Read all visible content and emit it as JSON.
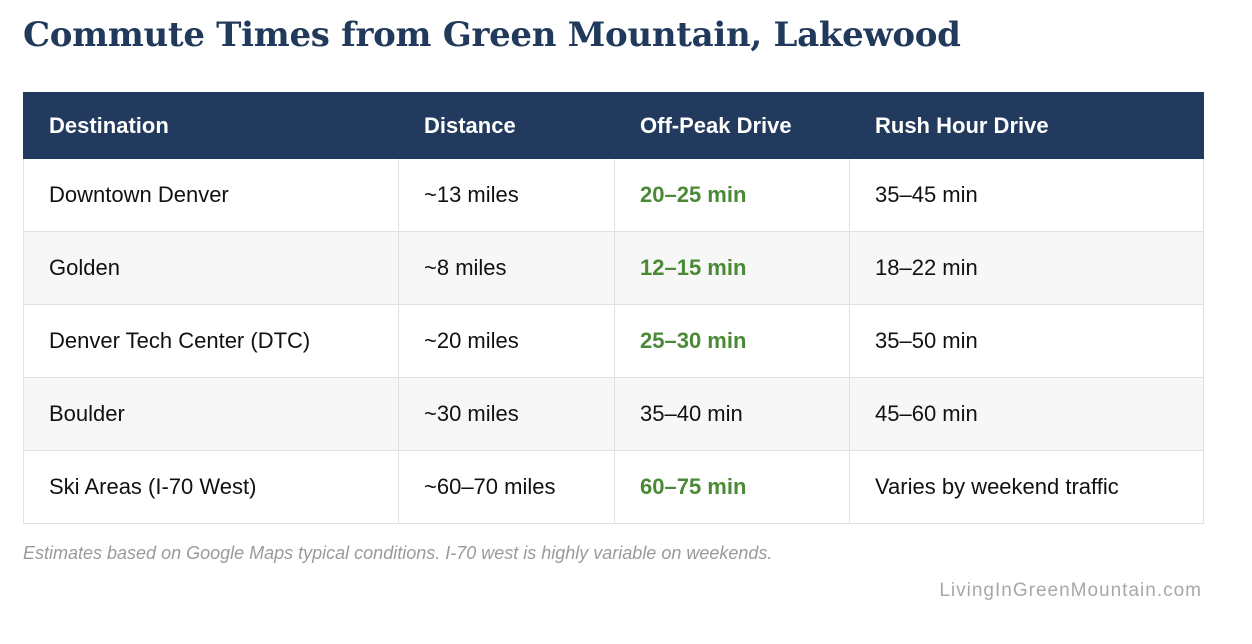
{
  "title": "Commute Times from Green Mountain, Lakewood",
  "table": {
    "headers": [
      "Destination",
      "Distance",
      "Off-Peak Drive",
      "Rush Hour Drive"
    ],
    "rows": [
      {
        "destination": "Downtown Denver",
        "distance": "~13 miles",
        "off_peak": "20–25 min",
        "off_peak_highlight": true,
        "rush_hour": "35–45 min"
      },
      {
        "destination": "Golden",
        "distance": "~8 miles",
        "off_peak": "12–15 min",
        "off_peak_highlight": true,
        "rush_hour": "18–22 min"
      },
      {
        "destination": "Denver Tech Center (DTC)",
        "distance": "~20 miles",
        "off_peak": "25–30 min",
        "off_peak_highlight": true,
        "rush_hour": "35–50 min"
      },
      {
        "destination": "Boulder",
        "distance": "~30 miles",
        "off_peak": "35–40 min",
        "off_peak_highlight": false,
        "rush_hour": "45–60 min"
      },
      {
        "destination": "Ski Areas (I-70 West)",
        "distance": "~60–70 miles",
        "off_peak": "60–75 min",
        "off_peak_highlight": true,
        "rush_hour": "Varies by weekend traffic"
      }
    ]
  },
  "footnote": "Estimates based on Google Maps typical conditions. I-70 west is highly variable on weekends.",
  "credit": "LivingInGreenMountain.com",
  "colors": {
    "title": "#213a5c",
    "header_bg": "#223a5e",
    "highlight_green": "#4a8a36"
  }
}
